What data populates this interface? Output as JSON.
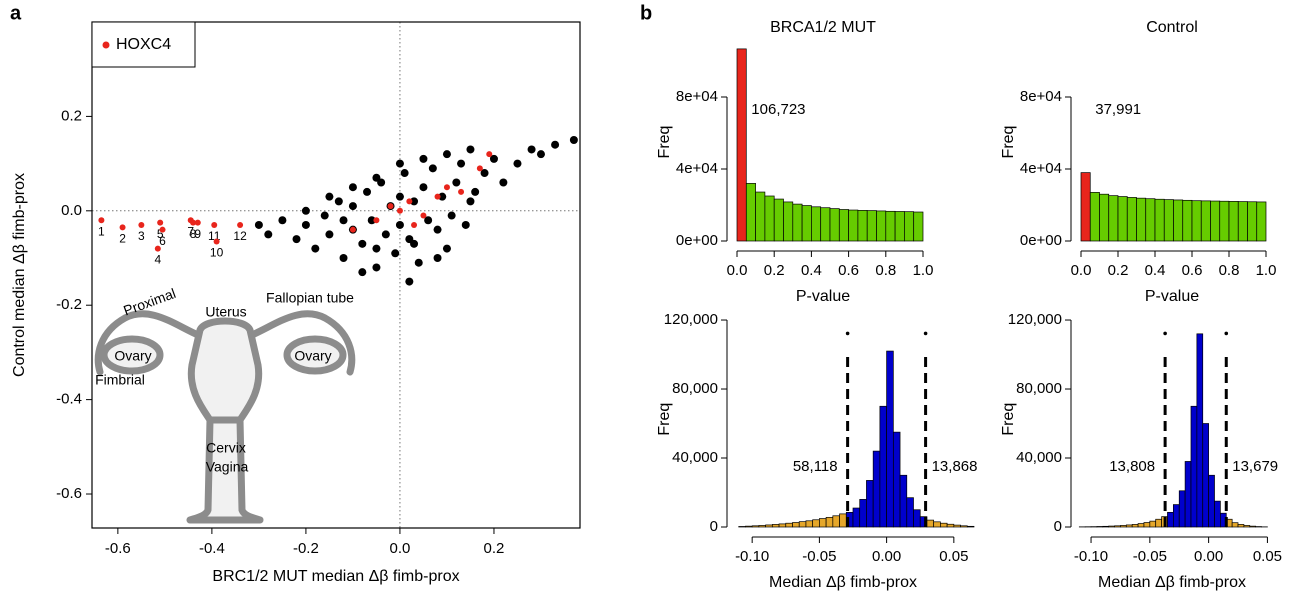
{
  "chart_data": [
    {
      "type": "scatter",
      "panel_label": "a",
      "xlabel": "BRC1/2 MUT median Δβ fimb-prox",
      "ylabel": "Control median Δβ fimb-prox",
      "xlim": [
        -0.655,
        0.383
      ],
      "ylim": [
        -0.672,
        0.4
      ],
      "xticks": [
        -0.6,
        -0.4,
        -0.2,
        {
          "value": 0,
          "label": "0.0"
        },
        0.2
      ],
      "yticks": [
        0.2,
        {
          "value": 0,
          "label": "0.0"
        },
        -0.2,
        -0.4,
        -0.6
      ],
      "hlines": [
        0
      ],
      "vlines": [
        0
      ],
      "annotations": [
        "Proximal",
        "Uterus",
        "Fallopian tube",
        "Ovary",
        "Ovary",
        "Fimbrial",
        "Cervix",
        "Vagina"
      ],
      "series": [
        {
          "color": "#000000",
          "x": [
            -0.3,
            -0.28,
            -0.25,
            -0.22,
            -0.2,
            -0.18,
            -0.16,
            -0.15,
            -0.13,
            -0.12,
            -0.1,
            -0.1,
            -0.08,
            -0.07,
            -0.06,
            -0.05,
            -0.04,
            -0.03,
            -0.02,
            -0.01,
            0,
            0,
            0.01,
            0.02,
            0.03,
            0.04,
            0.05,
            0.06,
            0.07,
            0.08,
            0.09,
            0.1,
            0.11,
            0.12,
            0.13,
            0.14,
            0.15,
            0.16,
            0.18,
            0.2,
            0.22,
            0.25,
            0.28,
            0.3,
            0.33,
            0.37,
            -0.15,
            -0.1,
            -0.05,
            0,
            0.05,
            0.1,
            -0.2,
            -0.12,
            -0.08,
            0.02,
            0.08,
            0.15,
            -0.05,
            0.03
          ],
          "values": [
            -0.03,
            -0.05,
            -0.02,
            -0.06,
            -0.03,
            -0.08,
            -0.01,
            -0.05,
            0.02,
            -0.1,
            -0.04,
            0.01,
            -0.07,
            0.04,
            -0.02,
            -0.12,
            0.06,
            -0.05,
            0.01,
            -0.09,
            0.03,
            -0.03,
            0.08,
            -0.06,
            0.02,
            -0.11,
            0.05,
            -0.02,
            0.09,
            -0.04,
            0.03,
            0.12,
            -0.01,
            0.06,
            0.1,
            -0.03,
            0.13,
            0.04,
            0.08,
            0.11,
            0.06,
            0.1,
            0.13,
            0.12,
            0.14,
            0.15,
            0.03,
            0.05,
            0.07,
            0.1,
            0.11,
            -0.08,
            0,
            -0.02,
            -0.13,
            -0.15,
            -0.1,
            0.02,
            -0.08,
            -0.07
          ]
        },
        {
          "name": "HOXC4",
          "color": "#e8251c",
          "x": [
            -0.635,
            -0.59,
            -0.55,
            -0.51,
            -0.505,
            -0.515,
            -0.445,
            -0.44,
            -0.43,
            -0.395,
            -0.39,
            -0.34,
            -0.05,
            -0.02,
            0,
            0.02,
            0.05,
            0.08,
            0.1,
            0.13,
            0.17,
            0.19,
            -0.1,
            0.03
          ],
          "values": [
            -0.02,
            -0.035,
            -0.03,
            -0.025,
            -0.04,
            -0.08,
            -0.02,
            -0.025,
            -0.025,
            -0.03,
            -0.065,
            -0.03,
            -0.02,
            0.01,
            0,
            0.02,
            -0.01,
            0.03,
            0.05,
            0.04,
            0.09,
            0.12,
            -0.04,
            -0.03
          ],
          "point_labels": [
            "1",
            "2",
            "3",
            "5",
            "6",
            "4",
            "7",
            "8",
            "9",
            "11",
            "10",
            "12",
            null,
            null,
            null,
            null,
            null,
            null,
            null,
            null,
            null,
            null,
            null,
            null
          ]
        }
      ]
    },
    {
      "type": "histogram",
      "panel_label": "b",
      "title": "BRCA1/2  MUT",
      "xlabel": "P-value",
      "ylabel": "Freq",
      "bins": [
        0,
        0.05,
        0.1,
        0.15,
        0.2,
        0.25,
        0.3,
        0.35,
        0.4,
        0.45,
        0.5,
        0.55,
        0.6,
        0.65,
        0.7,
        0.75,
        0.8,
        0.85,
        0.9,
        0.95,
        1
      ],
      "values": [
        106723,
        32000,
        27200,
        25000,
        23300,
        21700,
        20500,
        19700,
        19000,
        18500,
        18000,
        17500,
        17200,
        17000,
        16900,
        16700,
        16500,
        16400,
        16300,
        16100
      ],
      "value_labels": [
        "106,723",
        null,
        null,
        null,
        null,
        null,
        null,
        null,
        null,
        null,
        null,
        null,
        null,
        null,
        null,
        null,
        null,
        null,
        null,
        null
      ],
      "color": "#66cc00",
      "highlight_below": 0.05,
      "highlight_color": "#e8251c",
      "label_color": "#e8251c",
      "xlim": [
        0,
        1
      ],
      "ylim": [
        0,
        110000
      ],
      "xticks": [
        {
          "value": 0,
          "label": "0.0"
        },
        0.2,
        0.4,
        0.6,
        0.8,
        {
          "value": 1,
          "label": "1.0"
        }
      ],
      "yticks": [
        {
          "value": 0,
          "label": "0e+00"
        },
        {
          "value": 40000,
          "label": "4e+04"
        },
        {
          "value": 80000,
          "label": "8e+04"
        }
      ]
    },
    {
      "type": "histogram",
      "title": "Control",
      "xlabel": "P-value",
      "ylabel": "Freq",
      "bins": [
        0,
        0.05,
        0.1,
        0.15,
        0.2,
        0.25,
        0.3,
        0.35,
        0.4,
        0.45,
        0.5,
        0.55,
        0.6,
        0.65,
        0.7,
        0.75,
        0.8,
        0.85,
        0.9,
        0.95,
        1
      ],
      "values": [
        37991,
        27000,
        26000,
        25200,
        24700,
        24200,
        23800,
        23500,
        23200,
        23000,
        22800,
        22600,
        22400,
        22300,
        22200,
        22100,
        22000,
        21900,
        21800,
        21700
      ],
      "value_labels": [
        "37,991",
        null,
        null,
        null,
        null,
        null,
        null,
        null,
        null,
        null,
        null,
        null,
        null,
        null,
        null,
        null,
        null,
        null,
        null,
        null
      ],
      "color": "#66cc00",
      "highlight_below": 0.05,
      "highlight_color": "#e8251c",
      "label_color": "#e8251c",
      "xlim": [
        0,
        1
      ],
      "ylim": [
        0,
        110000
      ],
      "xticks": [
        {
          "value": 0,
          "label": "0.0"
        },
        0.2,
        0.4,
        0.6,
        0.8,
        {
          "value": 1,
          "label": "1.0"
        }
      ],
      "yticks": [
        {
          "value": 0,
          "label": "0e+00"
        },
        {
          "value": 40000,
          "label": "4e+04"
        },
        {
          "value": 80000,
          "label": "8e+04"
        }
      ]
    },
    {
      "type": "histogram",
      "xlabel": "Median Δβ fimb-prox",
      "ylabel": "Freq",
      "bins": [
        -0.11,
        -0.105,
        -0.1,
        -0.095,
        -0.09,
        -0.085,
        -0.08,
        -0.075,
        -0.07,
        -0.065,
        -0.06,
        -0.055,
        -0.05,
        -0.045,
        -0.04,
        -0.035,
        -0.03,
        -0.025,
        -0.02,
        -0.015,
        -0.01,
        -0.005,
        0,
        0.005,
        0.01,
        0.015,
        0.02,
        0.025,
        0.03,
        0.035,
        0.04,
        0.045,
        0.05,
        0.055,
        0.06,
        0.065
      ],
      "values": [
        300,
        500,
        700,
        900,
        1200,
        1500,
        1800,
        2200,
        2600,
        3100,
        3600,
        4200,
        4900,
        5600,
        6500,
        7600,
        8500,
        11000,
        16000,
        27000,
        44000,
        70000,
        102000,
        55000,
        30000,
        17000,
        10000,
        6000,
        4000,
        3000,
        2200,
        1600,
        1100,
        700,
        400
      ],
      "color": "#0000cc",
      "tail_color": "#e5a72a",
      "label_color": "#d9a521",
      "thresholds": [
        -0.029,
        0.029
      ],
      "tail_counts": [
        58118,
        13868
      ],
      "tail_labels": [
        "58,118",
        "13,868"
      ],
      "xlim": [
        -0.115,
        0.065
      ],
      "ylim": [
        0,
        125000
      ],
      "xticks": [
        {
          "value": -0.1,
          "label": "-0.10"
        },
        -0.05,
        {
          "value": 0,
          "label": "0.00"
        },
        0.05
      ],
      "yticks": [
        0,
        {
          "value": 40000,
          "label": "40,000"
        },
        {
          "value": 80000,
          "label": "80,000"
        },
        {
          "value": 120000,
          "label": "120,000"
        }
      ]
    },
    {
      "type": "histogram",
      "xlabel": "Median Δβ fimb-prox",
      "ylabel": "Freq",
      "bins": [
        -0.11,
        -0.105,
        -0.1,
        -0.095,
        -0.09,
        -0.085,
        -0.08,
        -0.075,
        -0.07,
        -0.065,
        -0.06,
        -0.055,
        -0.05,
        -0.045,
        -0.04,
        -0.035,
        -0.03,
        -0.025,
        -0.02,
        -0.015,
        -0.01,
        -0.005,
        0,
        0.005,
        0.01,
        0.015,
        0.02,
        0.025,
        0.03,
        0.035,
        0.04,
        0.045,
        0.05
      ],
      "values": [
        100,
        150,
        200,
        300,
        400,
        550,
        700,
        900,
        1200,
        1500,
        2000,
        2600,
        3400,
        4500,
        6000,
        8500,
        13000,
        21000,
        38000,
        70000,
        112000,
        60000,
        30000,
        15000,
        8000,
        4500,
        2500,
        1500,
        900,
        500,
        250,
        100
      ],
      "color": "#0000cc",
      "tail_color": "#e5a72a",
      "label_color": "#d9a521",
      "thresholds": [
        -0.037,
        0.015
      ],
      "tail_counts": [
        13808,
        13679
      ],
      "tail_labels": [
        "13,808",
        "13,679"
      ],
      "xlim": [
        -0.115,
        0.055
      ],
      "ylim": [
        0,
        125000
      ],
      "xticks": [
        {
          "value": -0.1,
          "label": "-0.10"
        },
        -0.05,
        {
          "value": 0,
          "label": "0.00"
        },
        0.05
      ],
      "yticks": [
        0,
        {
          "value": 40000,
          "label": "40,000"
        },
        {
          "value": 80000,
          "label": "80,000"
        },
        {
          "value": 120000,
          "label": "120,000"
        }
      ]
    }
  ]
}
